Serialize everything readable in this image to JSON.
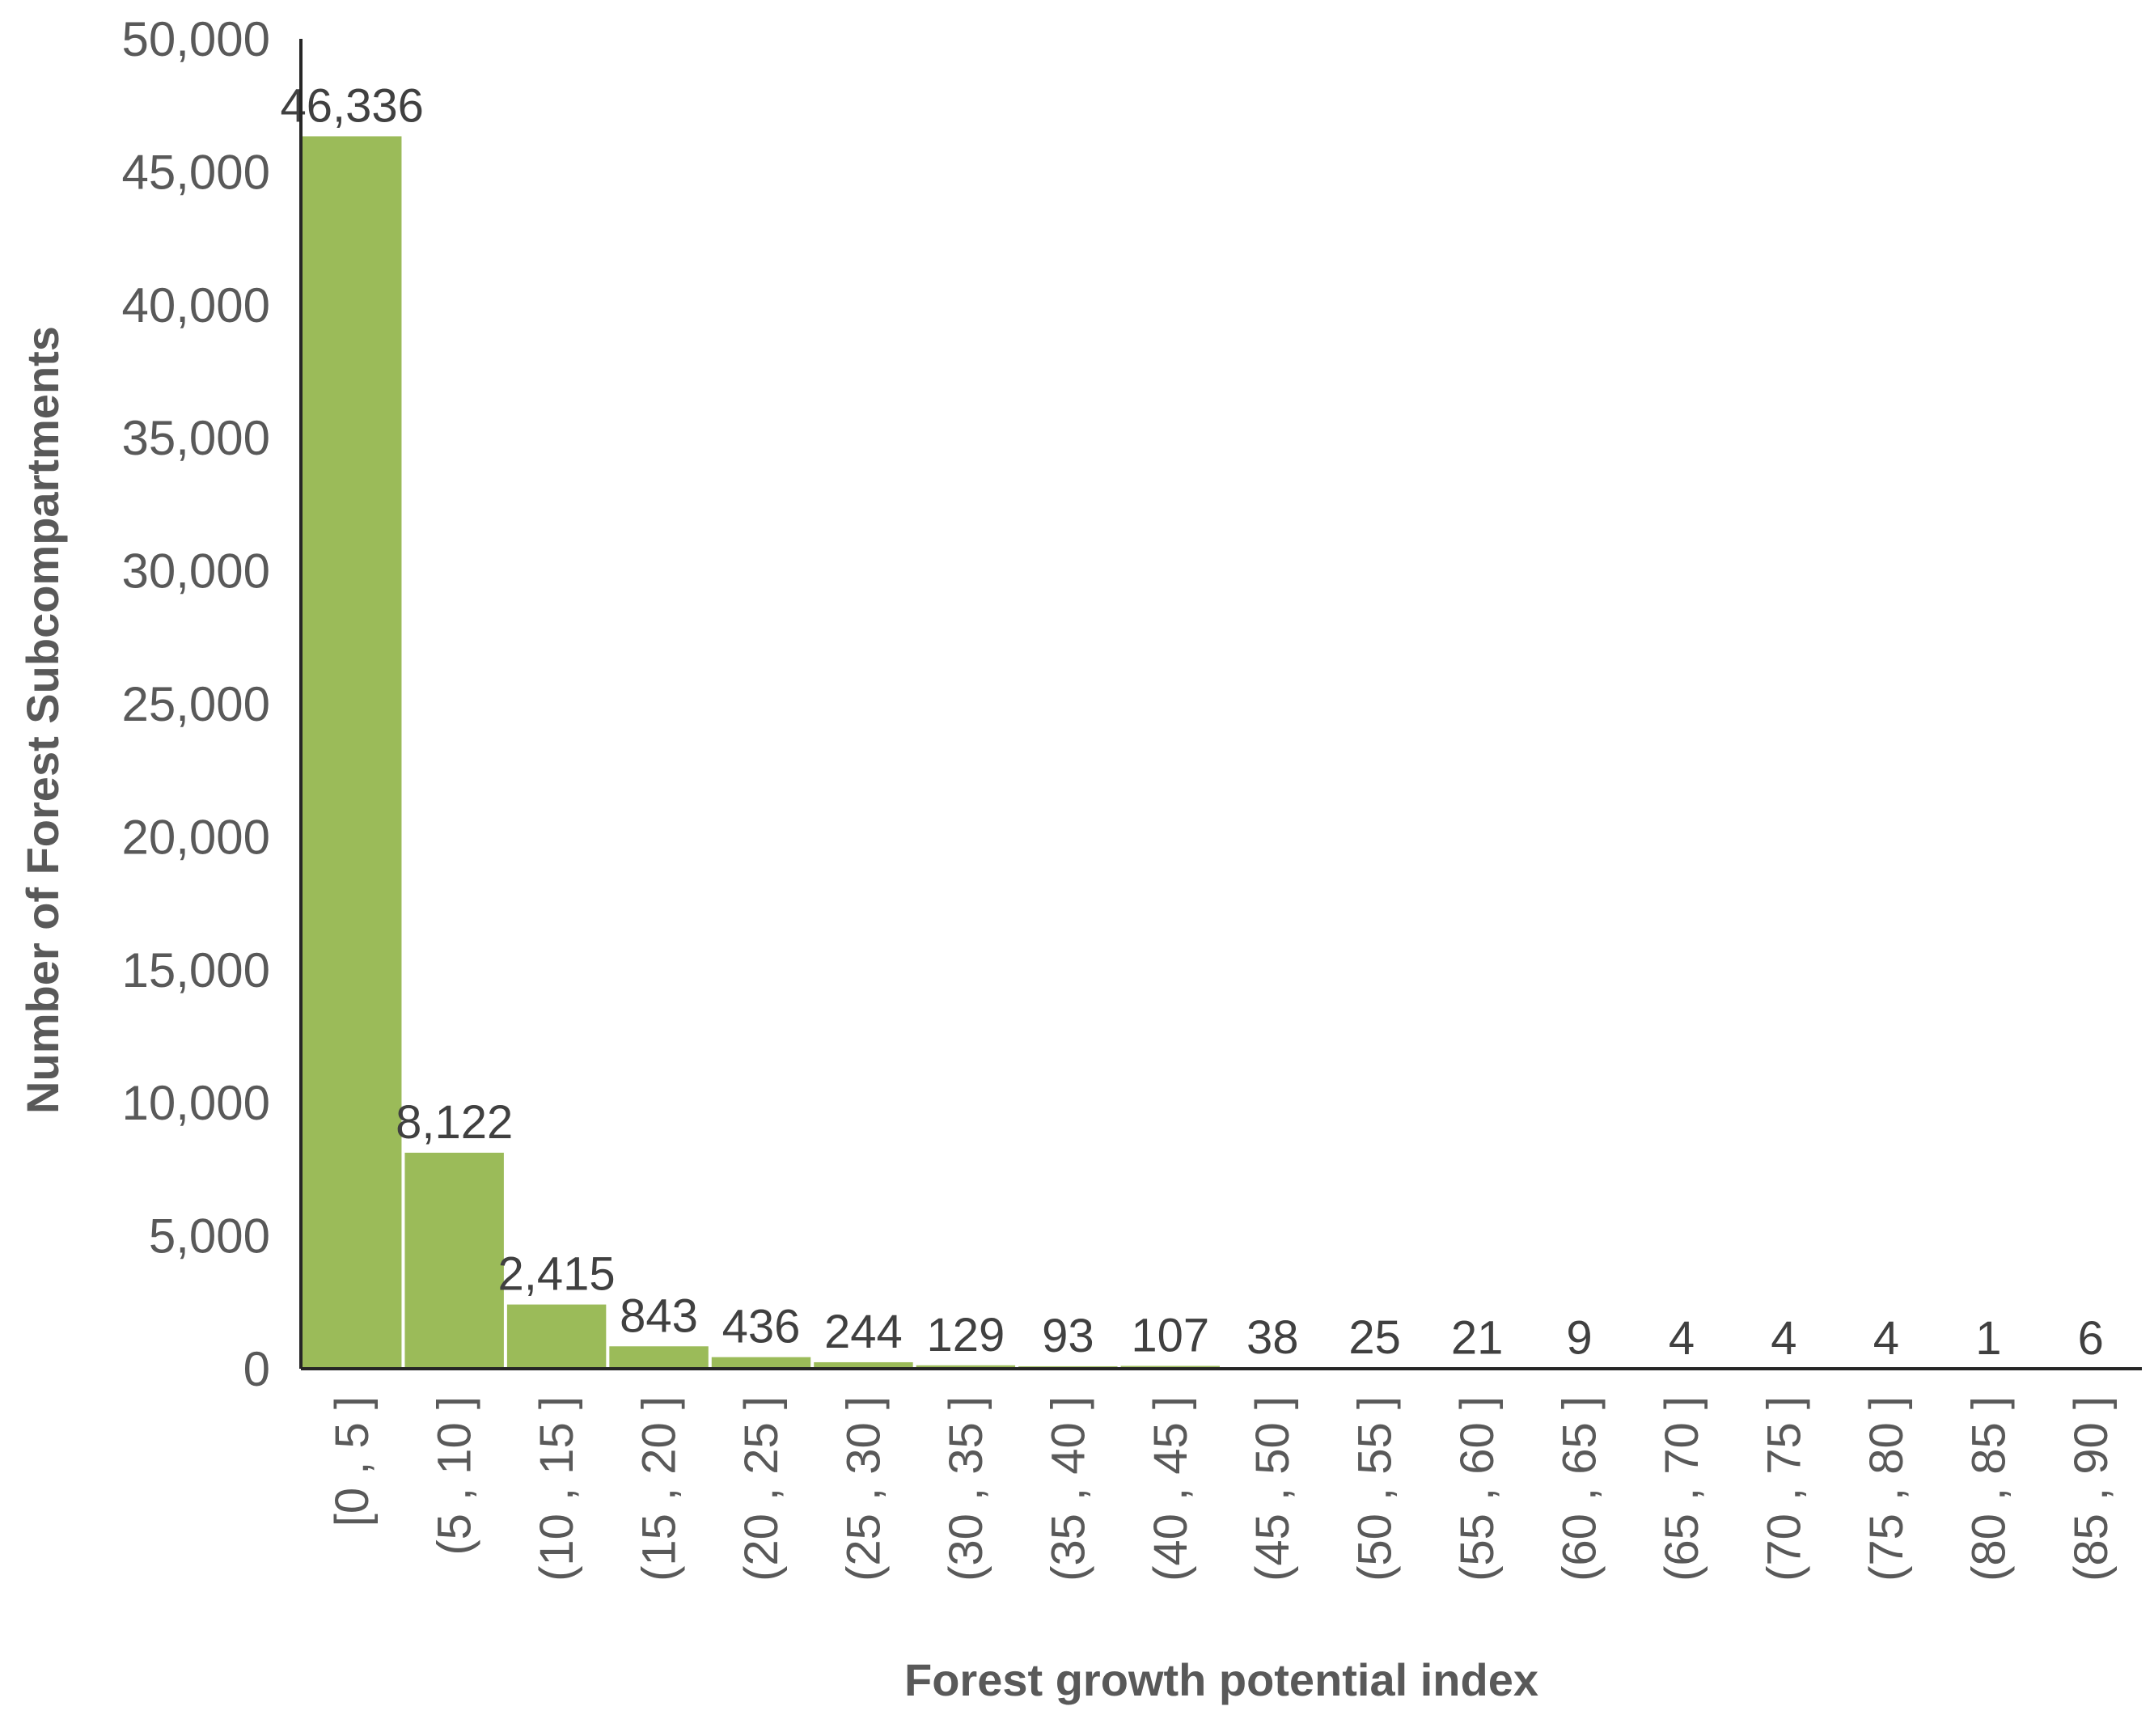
{
  "chart_data": {
    "type": "bar",
    "title": "",
    "xlabel": "Forest growth potential index",
    "ylabel": "Number of Forest Subcompartments",
    "categories": [
      "[0 , 5 ]",
      "(5 , 10 ]",
      "(10 , 15 ]",
      "(15 , 20 ]",
      "(20 , 25 ]",
      "(25 , 30 ]",
      "(30 , 35 ]",
      "(35 , 40 ]",
      "(40 , 45 ]",
      "(45 , 50 ]",
      "(50 , 55 ]",
      "(55 , 60 ]",
      "(60 , 65 ]",
      "(65 , 70 ]",
      "(70 , 75 ]",
      "(75 , 80 ]",
      "(80 , 85 ]",
      "(85 , 90 ]"
    ],
    "values": [
      46336,
      8122,
      2415,
      843,
      436,
      244,
      129,
      93,
      107,
      38,
      25,
      21,
      9,
      4,
      4,
      4,
      1,
      6
    ],
    "data_labels": [
      "46,336",
      "8,122",
      "2,415",
      "843",
      "436",
      "244",
      "129",
      "93",
      "107",
      "38",
      "25",
      "21",
      "9",
      "4",
      "4",
      "4",
      "1",
      "6"
    ],
    "ylim": [
      0,
      50000
    ],
    "yticks": [
      0,
      5000,
      10000,
      15000,
      20000,
      25000,
      30000,
      35000,
      40000,
      45000,
      50000
    ],
    "ytick_labels": [
      "0",
      "5,000",
      "10,000",
      "15,000",
      "20,000",
      "25,000",
      "30,000",
      "35,000",
      "40,000",
      "45,000",
      "50,000"
    ],
    "bar_color": "#9BBB59",
    "grid": false,
    "legend": "none"
  }
}
